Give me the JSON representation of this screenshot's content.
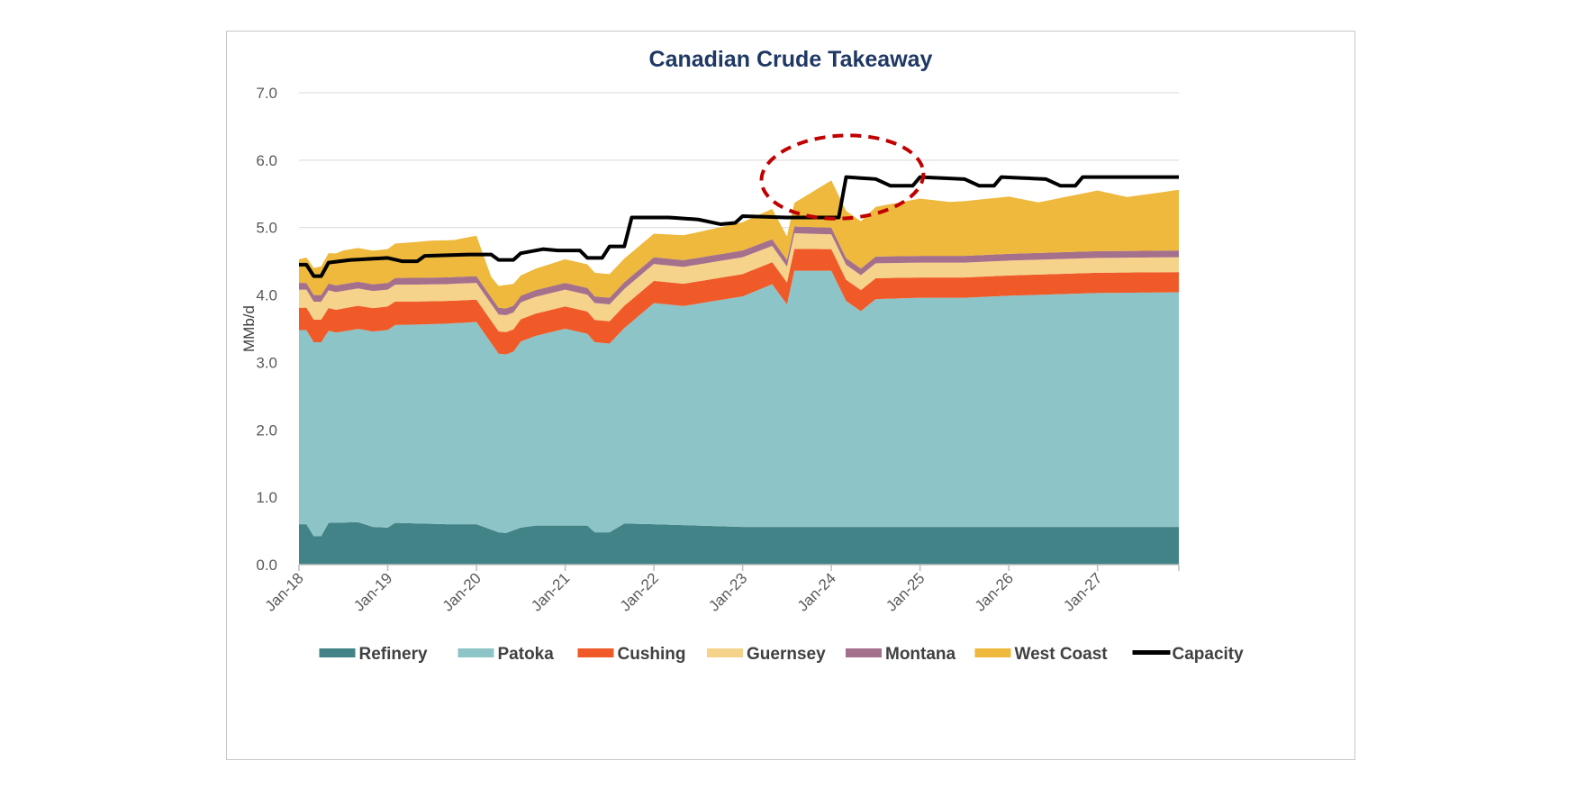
{
  "chart_data": {
    "type": "area",
    "title": "Canadian Crude Takeaway",
    "xlabel": "",
    "ylabel": "MMb/d",
    "ylim": [
      0,
      7
    ],
    "yticks": [
      "0.0",
      "1.0",
      "2.0",
      "3.0",
      "4.0",
      "5.0",
      "6.0",
      "7.0"
    ],
    "xticks": [
      "Jan-18",
      "Jan-19",
      "Jan-20",
      "Jan-21",
      "Jan-22",
      "Jan-23",
      "Jan-24",
      "Jan-25",
      "Jan-26",
      "Jan-27"
    ],
    "grid": true,
    "legend_position": "bottom",
    "stacked": true,
    "x_start": "Jan-18",
    "x_end": "Dec-27",
    "x_frequency": "monthly",
    "annotation": "red dashed ellipse around Jan-24 capacity increase",
    "series": [
      {
        "name": "Refinery",
        "color": "#418387",
        "knots": [
          [
            0,
            0.6
          ],
          [
            1,
            0.6
          ],
          [
            2,
            0.42
          ],
          [
            3,
            0.42
          ],
          [
            4,
            0.62
          ],
          [
            8,
            0.63
          ],
          [
            10,
            0.56
          ],
          [
            12,
            0.55
          ],
          [
            13,
            0.62
          ],
          [
            20,
            0.6
          ],
          [
            24,
            0.6
          ],
          [
            27,
            0.48
          ],
          [
            28,
            0.47
          ],
          [
            30,
            0.55
          ],
          [
            32,
            0.58
          ],
          [
            36,
            0.58
          ],
          [
            39,
            0.58
          ],
          [
            40,
            0.48
          ],
          [
            42,
            0.48
          ],
          [
            44,
            0.61
          ],
          [
            48,
            0.6
          ],
          [
            60,
            0.56
          ],
          [
            72,
            0.56
          ],
          [
            84,
            0.56
          ],
          [
            96,
            0.56
          ],
          [
            108,
            0.56
          ],
          [
            119,
            0.56
          ]
        ]
      },
      {
        "name": "Patoka",
        "color": "#8dc4c7",
        "knots": [
          [
            0,
            2.88
          ],
          [
            2,
            2.88
          ],
          [
            3,
            2.88
          ],
          [
            5,
            2.82
          ],
          [
            12,
            2.93
          ],
          [
            16,
            2.95
          ],
          [
            24,
            3.0
          ],
          [
            27,
            2.65
          ],
          [
            29,
            2.65
          ],
          [
            30,
            2.76
          ],
          [
            36,
            2.92
          ],
          [
            40,
            2.82
          ],
          [
            42,
            2.8
          ],
          [
            44,
            2.9
          ],
          [
            48,
            3.28
          ],
          [
            52,
            3.25
          ],
          [
            60,
            3.42
          ],
          [
            64,
            3.6
          ],
          [
            66,
            3.3
          ],
          [
            67,
            3.8
          ],
          [
            72,
            3.8
          ],
          [
            74,
            3.35
          ],
          [
            76,
            3.2
          ],
          [
            78,
            3.38
          ],
          [
            84,
            3.4
          ],
          [
            90,
            3.4
          ],
          [
            96,
            3.43
          ],
          [
            108,
            3.47
          ],
          [
            119,
            3.48
          ]
        ]
      },
      {
        "name": "Cushing",
        "color": "#f05a28",
        "knots": [
          [
            0,
            0.33
          ],
          [
            12,
            0.35
          ],
          [
            24,
            0.33
          ],
          [
            36,
            0.33
          ],
          [
            48,
            0.33
          ],
          [
            60,
            0.33
          ],
          [
            72,
            0.32
          ],
          [
            84,
            0.3
          ],
          [
            96,
            0.3
          ],
          [
            108,
            0.3
          ],
          [
            119,
            0.3
          ]
        ]
      },
      {
        "name": "Guernsey",
        "color": "#f5d38b",
        "knots": [
          [
            0,
            0.27
          ],
          [
            12,
            0.25
          ],
          [
            24,
            0.25
          ],
          [
            36,
            0.25
          ],
          [
            48,
            0.25
          ],
          [
            60,
            0.25
          ],
          [
            72,
            0.22
          ],
          [
            84,
            0.22
          ],
          [
            96,
            0.22
          ],
          [
            108,
            0.22
          ],
          [
            119,
            0.22
          ]
        ]
      },
      {
        "name": "Montana",
        "color": "#a5708c",
        "knots": [
          [
            0,
            0.1
          ],
          [
            12,
            0.1
          ],
          [
            24,
            0.1
          ],
          [
            36,
            0.1
          ],
          [
            48,
            0.1
          ],
          [
            60,
            0.1
          ],
          [
            72,
            0.1
          ],
          [
            84,
            0.1
          ],
          [
            96,
            0.1
          ],
          [
            108,
            0.1
          ],
          [
            119,
            0.1
          ]
        ]
      },
      {
        "name": "West Coast",
        "color": "#eeb93c",
        "knots": [
          [
            0,
            0.35
          ],
          [
            6,
            0.5
          ],
          [
            12,
            0.5
          ],
          [
            18,
            0.55
          ],
          [
            21,
            0.55
          ],
          [
            24,
            0.6
          ],
          [
            26,
            0.3
          ],
          [
            28,
            0.35
          ],
          [
            30,
            0.3
          ],
          [
            36,
            0.35
          ],
          [
            42,
            0.35
          ],
          [
            48,
            0.35
          ],
          [
            54,
            0.38
          ],
          [
            60,
            0.42
          ],
          [
            64,
            0.45
          ],
          [
            66,
            0.35
          ],
          [
            67,
            0.35
          ],
          [
            72,
            0.7
          ],
          [
            76,
            0.7
          ],
          [
            84,
            0.85
          ],
          [
            88,
            0.8
          ],
          [
            96,
            0.85
          ],
          [
            100,
            0.75
          ],
          [
            108,
            0.9
          ],
          [
            112,
            0.8
          ],
          [
            119,
            0.9
          ]
        ]
      },
      {
        "name": "Capacity",
        "color": "#000000",
        "line": true,
        "knots": [
          [
            0,
            4.45
          ],
          [
            1,
            4.45
          ],
          [
            2,
            4.28
          ],
          [
            3,
            4.28
          ],
          [
            4,
            4.48
          ],
          [
            7,
            4.52
          ],
          [
            12,
            4.55
          ],
          [
            14,
            4.5
          ],
          [
            16,
            4.5
          ],
          [
            17,
            4.58
          ],
          [
            23,
            4.6
          ],
          [
            26,
            4.6
          ],
          [
            27,
            4.52
          ],
          [
            29,
            4.52
          ],
          [
            30,
            4.62
          ],
          [
            33,
            4.68
          ],
          [
            35,
            4.66
          ],
          [
            38,
            4.66
          ],
          [
            39,
            4.55
          ],
          [
            41,
            4.55
          ],
          [
            42,
            4.72
          ],
          [
            44,
            4.72
          ],
          [
            45,
            5.15
          ],
          [
            50,
            5.15
          ],
          [
            54,
            5.12
          ],
          [
            57,
            5.05
          ],
          [
            59,
            5.07
          ],
          [
            60,
            5.17
          ],
          [
            66,
            5.15
          ],
          [
            72,
            5.15
          ],
          [
            73,
            5.15
          ],
          [
            74,
            5.75
          ],
          [
            78,
            5.72
          ],
          [
            80,
            5.62
          ],
          [
            83,
            5.62
          ],
          [
            84,
            5.75
          ],
          [
            90,
            5.72
          ],
          [
            92,
            5.62
          ],
          [
            94,
            5.62
          ],
          [
            95,
            5.75
          ],
          [
            101,
            5.72
          ],
          [
            103,
            5.62
          ],
          [
            105,
            5.62
          ],
          [
            106,
            5.75
          ],
          [
            119,
            5.75
          ]
        ]
      }
    ]
  }
}
